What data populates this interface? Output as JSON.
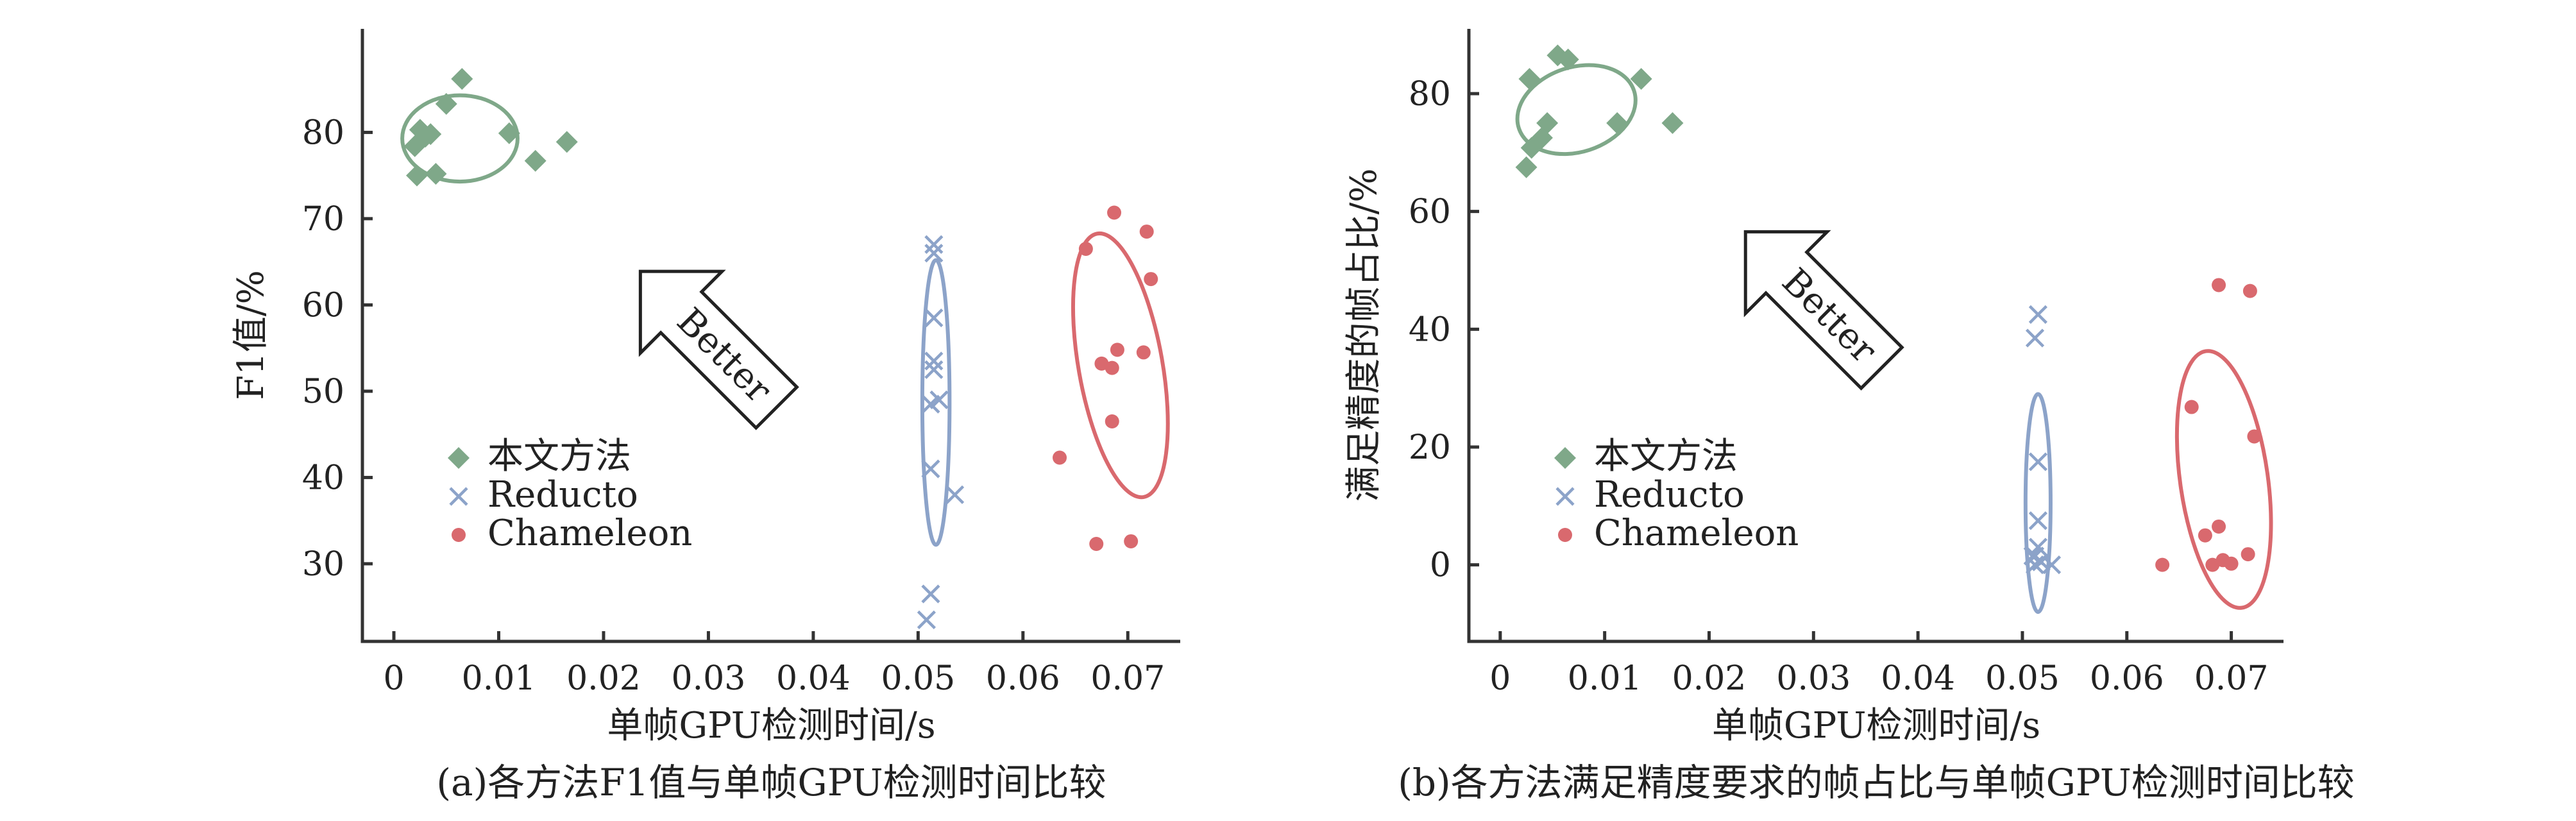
{
  "chart_data": [
    {
      "id": "a",
      "type": "scatter",
      "caption": "(a)各方法F1值与单帧GPU检测时间比较",
      "xlabel": "单帧GPU检测时间/s",
      "ylabel": "F1值/%",
      "xlim": [
        -0.003,
        0.075
      ],
      "ylim": [
        21,
        92
      ],
      "xticks": [
        0,
        0.01,
        0.02,
        0.03,
        0.04,
        0.05,
        0.06,
        0.07
      ],
      "xtick_labels": [
        "0",
        "0.01",
        "0.02",
        "0.03",
        "0.04",
        "0.05",
        "0.06",
        "0.07"
      ],
      "yticks": [
        30,
        40,
        50,
        60,
        70,
        80
      ],
      "ytick_labels": [
        "30",
        "40",
        "50",
        "60",
        "70",
        "80"
      ],
      "grid": false,
      "legend_position": "lower-left",
      "arrow_label": "Better",
      "arrow_position": {
        "x": 0.03,
        "y": 56
      },
      "series": [
        {
          "name": "本文方法",
          "marker": "diamond",
          "color": "#7fa889",
          "points": [
            [
              0.0025,
              80.3
            ],
            [
              0.003,
              79.5
            ],
            [
              0.0035,
              79.8
            ],
            [
              0.005,
              83.3
            ],
            [
              0.0065,
              86.2
            ],
            [
              0.011,
              79.9
            ],
            [
              0.0135,
              76.7
            ],
            [
              0.0165,
              78.9
            ],
            [
              0.002,
              78.4
            ],
            [
              0.0022,
              75.0
            ],
            [
              0.004,
              75.2
            ]
          ],
          "ellipse": {
            "cx": 0.0063,
            "cy": 79.3,
            "rx": 0.0055,
            "ry": 5.0,
            "rotation_deg": 0
          }
        },
        {
          "name": "Reducto",
          "marker": "x",
          "color": "#8ca3c9",
          "points": [
            [
              0.0515,
              67.0
            ],
            [
              0.0515,
              66.0
            ],
            [
              0.0515,
              58.5
            ],
            [
              0.0515,
              53.5
            ],
            [
              0.0515,
              52.5
            ],
            [
              0.052,
              49.0
            ],
            [
              0.0512,
              48.5
            ],
            [
              0.0512,
              41.0
            ],
            [
              0.0535,
              38.0
            ],
            [
              0.0512,
              26.5
            ],
            [
              0.0508,
              23.5
            ]
          ],
          "ellipse": {
            "cx": 0.0517,
            "cy": 48.7,
            "rx": 0.0013,
            "ry": 16.5,
            "rotation_deg": 0
          }
        },
        {
          "name": "Chameleon",
          "marker": "circle",
          "color": "#d9696e",
          "points": [
            [
              0.0687,
              70.7
            ],
            [
              0.066,
              66.5
            ],
            [
              0.0718,
              68.5
            ],
            [
              0.0722,
              63.0
            ],
            [
              0.0715,
              54.5
            ],
            [
              0.069,
              54.8
            ],
            [
              0.0675,
              53.2
            ],
            [
              0.0685,
              52.7
            ],
            [
              0.0685,
              46.5
            ],
            [
              0.0635,
              42.3
            ],
            [
              0.067,
              32.3
            ],
            [
              0.0703,
              32.6
            ]
          ],
          "ellipse": {
            "cx": 0.0693,
            "cy": 53.0,
            "rx": 0.004,
            "ry": 15.5,
            "rotation_deg": -10
          }
        }
      ]
    },
    {
      "id": "b",
      "type": "scatter",
      "caption": "(b)各方法满足精度要求的帧占比与单帧GPU检测时间比较",
      "xlabel": "单帧GPU检测时间/s",
      "ylabel": "满足精度的帧占比/%",
      "xlim": [
        -0.003,
        0.075
      ],
      "ylim": [
        -13,
        91
      ],
      "xticks": [
        0,
        0.01,
        0.02,
        0.03,
        0.04,
        0.05,
        0.06,
        0.07
      ],
      "xtick_labels": [
        "0",
        "0.01",
        "0.02",
        "0.03",
        "0.04",
        "0.05",
        "0.06",
        "0.07"
      ],
      "yticks": [
        0,
        20,
        40,
        60,
        80
      ],
      "ytick_labels": [
        "0",
        "20",
        "40",
        "60",
        "80"
      ],
      "grid": false,
      "legend_position": "lower-left",
      "arrow_label": "Better",
      "arrow_position": {
        "x": 0.03,
        "y": 45
      },
      "series": [
        {
          "name": "本文方法",
          "marker": "diamond",
          "color": "#7fa889",
          "points": [
            [
              0.0028,
              82.5
            ],
            [
              0.0055,
              86.5
            ],
            [
              0.0065,
              85.8
            ],
            [
              0.0135,
              82.5
            ],
            [
              0.0112,
              75.0
            ],
            [
              0.0165,
              75.0
            ],
            [
              0.0045,
              75.0
            ],
            [
              0.004,
              72.5
            ],
            [
              0.003,
              70.8
            ],
            [
              0.0025,
              67.5
            ]
          ],
          "ellipse": {
            "cx": 0.0073,
            "cy": 77.3,
            "rx": 0.0058,
            "ry": 7.2,
            "rotation_deg": -18
          }
        },
        {
          "name": "Reducto",
          "marker": "x",
          "color": "#8ca3c9",
          "points": [
            [
              0.0515,
              42.5
            ],
            [
              0.0512,
              38.5
            ],
            [
              0.0515,
              17.5
            ],
            [
              0.0515,
              7.5
            ],
            [
              0.0515,
              3.0
            ],
            [
              0.0512,
              1.5
            ],
            [
              0.051,
              1.5
            ],
            [
              0.0518,
              0.5
            ],
            [
              0.0512,
              0.0
            ],
            [
              0.0528,
              0.0
            ]
          ],
          "ellipse": {
            "cx": 0.0515,
            "cy": 10.5,
            "rx": 0.0012,
            "ry": 18.5,
            "rotation_deg": 0
          }
        },
        {
          "name": "Chameleon",
          "marker": "circle",
          "color": "#d9696e",
          "points": [
            [
              0.0688,
              47.5
            ],
            [
              0.0718,
              46.5
            ],
            [
              0.0662,
              26.8
            ],
            [
              0.0722,
              21.8
            ],
            [
              0.0688,
              6.5
            ],
            [
              0.0675,
              5.0
            ],
            [
              0.0716,
              1.8
            ],
            [
              0.0692,
              0.8
            ],
            [
              0.07,
              0.2
            ],
            [
              0.0682,
              0.0
            ],
            [
              0.0634,
              0.0
            ]
          ],
          "ellipse": {
            "cx": 0.0693,
            "cy": 14.5,
            "rx": 0.0042,
            "ry": 22.0,
            "rotation_deg": -8
          }
        }
      ]
    }
  ]
}
